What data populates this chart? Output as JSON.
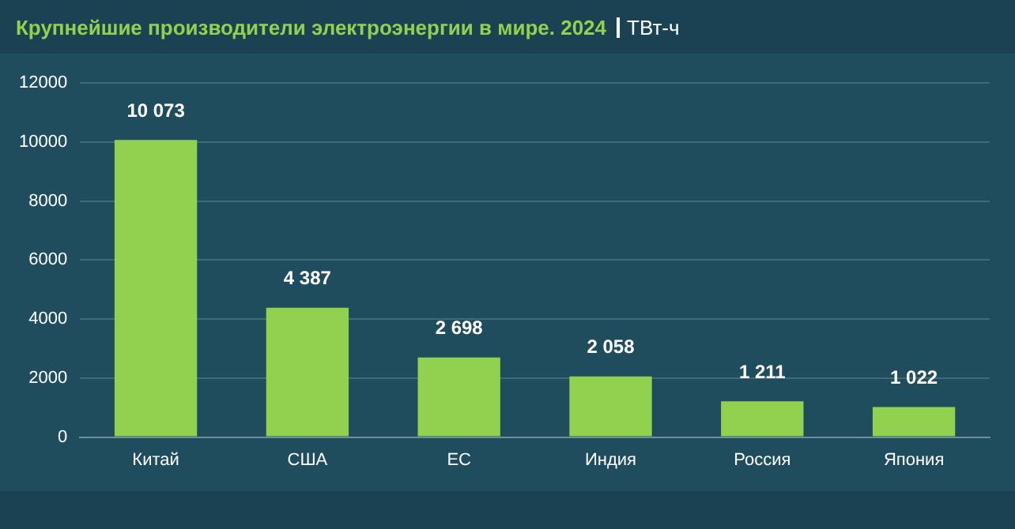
{
  "chart_data": {
    "type": "bar",
    "title": "Крупнейшие производители электроэнергии в мире. 2024",
    "subtitle": "ТВт-ч",
    "categories": [
      "Китай",
      "США",
      "ЕС",
      "Индия",
      "Россия",
      "Япония"
    ],
    "values": [
      10073,
      4387,
      2698,
      2058,
      1211,
      1022
    ],
    "value_labels": [
      "10 073",
      "4 387",
      "2 698",
      "2 058",
      "1 211",
      "1 022"
    ],
    "color": "#92d050",
    "ylim": [
      0,
      12000
    ],
    "yticks": [
      0,
      2000,
      4000,
      6000,
      8000,
      10000,
      12000
    ],
    "grid": "y",
    "legend": false
  }
}
